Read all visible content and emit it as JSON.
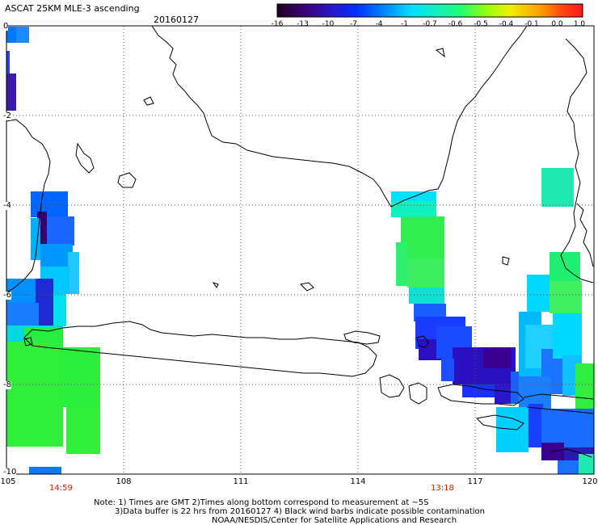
{
  "header": {
    "title": "ASCAT 25KM MLE-3 ascending",
    "date": "20160127"
  },
  "colorbar": {
    "labels": [
      "-16",
      "-13",
      "-10",
      "-7",
      "-4",
      "-1",
      "-0.7",
      "-0.6",
      "-0.5",
      "-0.4",
      "-0.1",
      "0.0",
      "1.0"
    ],
    "colors": [
      "#2a0030",
      "#3c007a",
      "#2a1fc8",
      "#0032ff",
      "#0090ff",
      "#00d8ff",
      "#10f0d0",
      "#20ff80",
      "#7cff20",
      "#e0ff00",
      "#ffc000",
      "#ff6000",
      "#ff2020"
    ]
  },
  "map": {
    "x_labels": [
      "105",
      "108",
      "111",
      "114",
      "117",
      "120"
    ],
    "y_labels": [
      "0",
      "-2",
      "-4",
      "-6",
      "-8",
      "-10"
    ],
    "pass_times": [
      "14:59",
      "13:18"
    ]
  },
  "notes": {
    "line1": "Note: 1) Times are GMT 2)Times along bottom correspond to measurement at ~5S",
    "line2": "3)Data buffer is 22 hrs from 20160127 4) Black wind barbs indicate possible contamination",
    "line3": "NOAA/NESDIS/Center for Satellite Applications and Research"
  }
}
